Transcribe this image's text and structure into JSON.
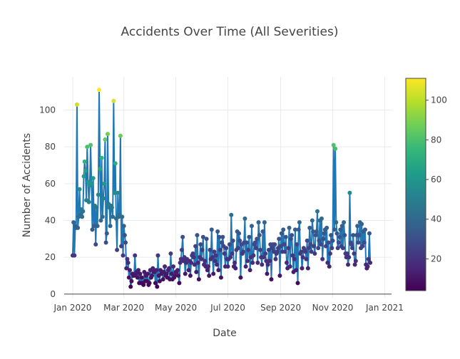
{
  "chart_data": {
    "type": "line",
    "title": "Accidents Over Time (All Severities)",
    "xlabel": "Date",
    "ylabel": "Number of Accidents",
    "x_start": "2020-01-01",
    "x_end": "2020-12-31",
    "xlim": [
      "2019-12-22",
      "2021-01-09"
    ],
    "ylim": [
      -2,
      118
    ],
    "x_ticks": [
      {
        "date": "2020-01-01",
        "label": "Jan 2020"
      },
      {
        "date": "2020-03-01",
        "label": "Mar 2020"
      },
      {
        "date": "2020-05-01",
        "label": "May 2020"
      },
      {
        "date": "2020-07-01",
        "label": "Jul 2020"
      },
      {
        "date": "2020-09-01",
        "label": "Sep 2020"
      },
      {
        "date": "2020-11-01",
        "label": "Nov 2020"
      },
      {
        "date": "2021-01-01",
        "label": "Jan 2021"
      }
    ],
    "y_ticks": [
      0,
      20,
      40,
      60,
      80,
      100
    ],
    "grid": true,
    "line_color": "#1f77b4",
    "marker_colorscale": "Viridis",
    "colorbar": {
      "range": [
        4,
        111
      ],
      "ticks": [
        20,
        40,
        60,
        80,
        100
      ]
    },
    "series": [
      {
        "values": [
          21,
          39,
          21,
          37,
          36,
          103,
          36,
          42,
          57,
          43,
          46,
          42,
          45,
          64,
          72,
          67,
          51,
          80,
          61,
          50,
          59,
          81,
          60,
          35,
          63,
          37,
          48,
          27,
          47,
          37,
          54,
          111,
          68,
          40,
          74,
          42,
          52,
          60,
          84,
          28,
          33,
          87,
          49,
          47,
          37,
          48,
          47,
          42,
          105,
          55,
          71,
          41,
          24,
          55,
          42,
          43,
          86,
          26,
          42,
          21,
          37,
          32,
          28,
          14,
          19,
          17,
          9,
          13,
          4,
          7,
          11,
          10,
          10,
          21,
          11,
          12,
          9,
          13,
          6,
          11,
          6,
          9,
          6,
          5,
          12,
          7,
          10,
          7,
          11,
          5,
          6,
          13,
          9,
          10,
          14,
          12,
          12,
          6,
          13,
          4,
          21,
          10,
          7,
          13,
          11,
          12,
          8,
          12,
          15,
          10,
          11,
          9,
          13,
          14,
          8,
          22,
          11,
          8,
          15,
          9,
          10,
          12,
          12,
          13,
          10,
          6,
          17,
          19,
          24,
          31,
          18,
          20,
          11,
          17,
          19,
          18,
          13,
          18,
          10,
          17,
          21,
          22,
          20,
          16,
          26,
          12,
          32,
          17,
          8,
          20,
          27,
          19,
          24,
          31,
          16,
          18,
          15,
          30,
          13,
          15,
          10,
          24,
          19,
          35,
          20,
          11,
          23,
          18,
          21,
          16,
          34,
          13,
          31,
          24,
          9,
          28,
          31,
          26,
          22,
          15,
          25,
          19,
          15,
          19,
          27,
          20,
          43,
          22,
          29,
          15,
          17,
          14,
          24,
          34,
          25,
          33,
          29,
          9,
          27,
          22,
          23,
          28,
          41,
          15,
          28,
          18,
          24,
          31,
          13,
          20,
          37,
          17,
          21,
          27,
          28,
          25,
          30,
          17,
          39,
          32,
          24,
          20,
          16,
          34,
          20,
          39,
          22,
          18,
          11,
          16,
          24,
          18,
          27,
          8,
          25,
          27,
          23,
          27,
          19,
          22,
          23,
          25,
          30,
          10,
          26,
          33,
          23,
          35,
          27,
          23,
          31,
          17,
          14,
          25,
          36,
          15,
          30,
          32,
          21,
          12,
          19,
          35,
          13,
          27,
          6,
          35,
          39,
          22,
          23,
          14,
          20,
          25,
          24,
          23,
          19,
          29,
          14,
          25,
          36,
          27,
          23,
          40,
          34,
          26,
          22,
          32,
          34,
          45,
          25,
          29,
          40,
          27,
          41,
          19,
          30,
          33,
          35,
          26,
          36,
          17,
          28,
          15,
          22,
          32,
          25,
          29,
          81,
          35,
          79,
          39,
          33,
          25,
          28,
          31,
          35,
          26,
          37,
          25,
          39,
          32,
          22,
          20,
          22,
          16,
          20,
          55,
          28,
          27,
          25,
          32,
          22,
          16,
          18,
          32,
          37,
          28,
          32,
          39,
          25,
          38,
          26,
          34,
          28,
          35,
          16,
          14,
          15,
          19,
          33,
          17
        ]
      }
    ]
  }
}
